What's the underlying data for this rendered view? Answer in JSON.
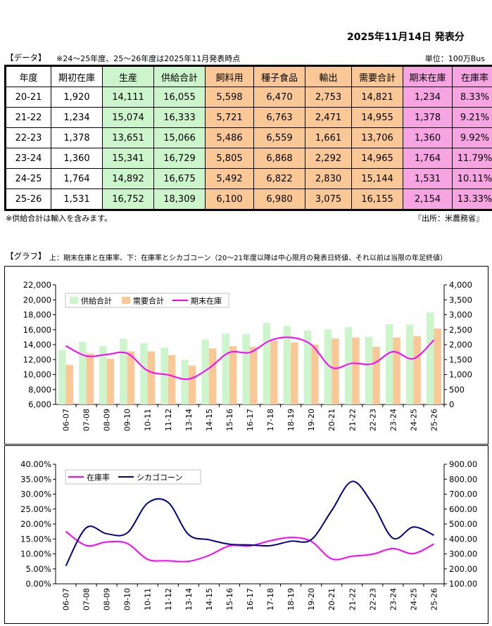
{
  "header": {
    "announcement": "2025年11月14日 発表分",
    "data_label": "【データ】",
    "note": "※24～25年度、25～26年度は2025年11月発表時点",
    "unit": "単位：100万Bus"
  },
  "table": {
    "columns": [
      {
        "label": "年度",
        "color": "#ffffff"
      },
      {
        "label": "期初在庫",
        "color": "#ffffff"
      },
      {
        "label": "生産",
        "color": "#ccf5cc"
      },
      {
        "label": "供給合計",
        "color": "#ccf5cc"
      },
      {
        "label": "飼料用",
        "color": "#f9c896"
      },
      {
        "label": "種子食品",
        "color": "#f9c896"
      },
      {
        "label": "輸出",
        "color": "#f9c896"
      },
      {
        "label": "需要合計",
        "color": "#f9c896"
      },
      {
        "label": "期末在庫",
        "color": "#f6a5e2"
      },
      {
        "label": "在庫率",
        "color": "#f6a5e2"
      }
    ],
    "rows": [
      [
        "20-21",
        "1,920",
        "14,111",
        "16,055",
        "5,598",
        "6,470",
        "2,753",
        "14,821",
        "1,234",
        "8.33%"
      ],
      [
        "21-22",
        "1,234",
        "15,074",
        "16,333",
        "5,721",
        "6,763",
        "2,471",
        "14,955",
        "1,378",
        "9.21%"
      ],
      [
        "22-23",
        "1,378",
        "13,651",
        "15,066",
        "5,486",
        "6,559",
        "1,661",
        "13,706",
        "1,360",
        "9.92%"
      ],
      [
        "23-24",
        "1,360",
        "15,341",
        "16,729",
        "5,805",
        "6,868",
        "2,292",
        "14,965",
        "1,764",
        "11.79%"
      ],
      [
        "24-25",
        "1,764",
        "14,892",
        "16,675",
        "5,492",
        "6,822",
        "2,830",
        "15,144",
        "1,531",
        "10.11%"
      ],
      [
        "25-26",
        "1,531",
        "16,752",
        "18,309",
        "6,100",
        "6,980",
        "3,075",
        "16,155",
        "2,154",
        "13.33%"
      ]
    ]
  },
  "footer": {
    "note": "※供給合計は輸入を含みます。",
    "source": "『出所：米農務省』"
  },
  "graph": {
    "label": "【グラフ】",
    "note": "上：期末在庫と在庫率、下：在庫率とシカゴコーン（20～21年度以降は中心限月の発表日終値、それ以前は当限の年足終値）"
  },
  "chart_data": [
    {
      "type": "bar",
      "categories": [
        "06-07",
        "07-08",
        "08-09",
        "09-10",
        "10-11",
        "11-12",
        "13-14",
        "14-15",
        "15-16",
        "16-17",
        "17-18",
        "18-19",
        "19-20",
        "20-21",
        "21-22",
        "22-23",
        "23-24",
        "24-25",
        "25-26"
      ],
      "series": [
        {
          "name": "供給合計",
          "axis": "left",
          "kind": "bar",
          "color": "#ccf5cc",
          "values": [
            13300,
            14400,
            13800,
            14800,
            14200,
            13600,
            12000,
            14700,
            15500,
            15400,
            16900,
            16500,
            15900,
            16055,
            16333,
            15066,
            16729,
            16675,
            18309
          ]
        },
        {
          "name": "需要合計",
          "axis": "left",
          "kind": "bar",
          "color": "#f9c896",
          "values": [
            11300,
            12800,
            12100,
            13100,
            13100,
            12600,
            11200,
            13500,
            13800,
            13700,
            14500,
            14300,
            14000,
            14821,
            14955,
            13706,
            14965,
            15144,
            16155
          ]
        },
        {
          "name": "期末在庫",
          "axis": "right",
          "kind": "line",
          "color": "#ff00ff",
          "values": [
            1960,
            1620,
            1670,
            1710,
            1130,
            990,
            850,
            1210,
            1740,
            1740,
            2140,
            2240,
            2000,
            1234,
            1378,
            1360,
            1764,
            1531,
            2154
          ]
        }
      ],
      "left_axis": {
        "min": 6000,
        "max": 22000,
        "step": 2000,
        "ticks": [
          "6,000",
          "8,000",
          "10,000",
          "12,000",
          "14,000",
          "16,000",
          "18,000",
          "20,000",
          "22,000"
        ]
      },
      "right_axis": {
        "min": 0,
        "max": 4000,
        "step": 500,
        "ticks": [
          "0",
          "500",
          "1,000",
          "1,500",
          "2,000",
          "2,500",
          "3,000",
          "3,500",
          "4,000"
        ]
      },
      "legend": [
        "供給合計",
        "需要合計",
        "期末在庫"
      ],
      "legend_position": "top-left"
    },
    {
      "type": "line",
      "categories": [
        "06-07",
        "07-08",
        "08-09",
        "09-10",
        "10-11",
        "11-12",
        "13-14",
        "14-15",
        "15-16",
        "16-17",
        "17-18",
        "18-19",
        "19-20",
        "20-21",
        "21-22",
        "22-23",
        "23-24",
        "24-25",
        "25-26"
      ],
      "series": [
        {
          "name": "在庫率",
          "axis": "left",
          "color": "#ff00ff",
          "values": [
            17.5,
            12.8,
            14.0,
            13.5,
            8.2,
            7.7,
            7.5,
            9.5,
            12.7,
            12.7,
            14.4,
            15.5,
            14.2,
            8.33,
            9.21,
            9.92,
            11.79,
            10.11,
            13.33
          ]
        },
        {
          "name": "シカゴコーン",
          "axis": "right",
          "color": "#000080",
          "values": [
            220,
            475,
            435,
            440,
            640,
            645,
            430,
            395,
            365,
            360,
            355,
            385,
            395,
            590,
            785,
            635,
            405,
            480,
            425
          ]
        }
      ],
      "left_axis": {
        "min": 0,
        "max": 40,
        "step": 5,
        "ticks": [
          "0.00%",
          "5.00%",
          "10.00%",
          "15.00%",
          "20.00%",
          "25.00%",
          "30.00%",
          "35.00%",
          "40.00%"
        ]
      },
      "right_axis": {
        "min": 100,
        "max": 900,
        "step": 100,
        "ticks": [
          "100.00",
          "200.00",
          "300.00",
          "400.00",
          "500.00",
          "600.00",
          "700.00",
          "800.00",
          "900.00"
        ]
      },
      "legend": [
        "在庫率",
        "シカゴコーン"
      ],
      "legend_position": "top-left"
    }
  ]
}
